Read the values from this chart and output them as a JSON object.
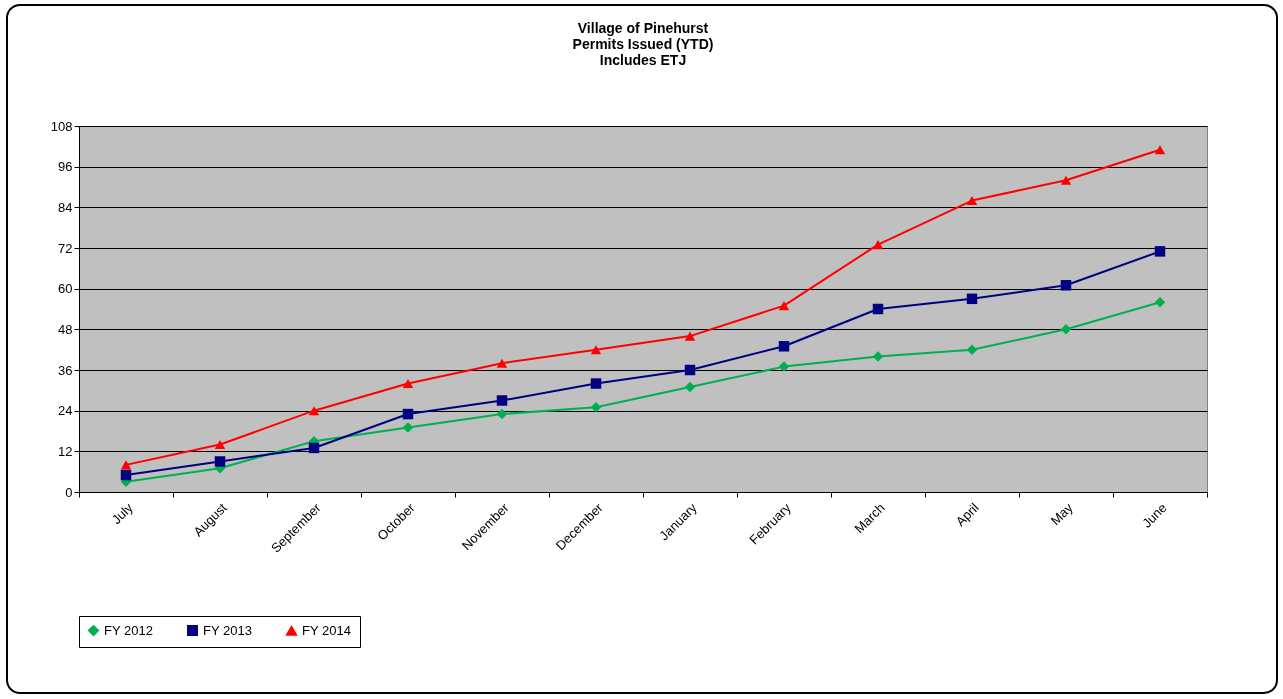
{
  "chart_data": {
    "type": "line",
    "title": "Village of Pinehurst",
    "subtitle": "Permits Issued (YTD)\nIncludes ETJ",
    "categories": [
      "July",
      "August",
      "September",
      "October",
      "November",
      "December",
      "January",
      "February",
      "March",
      "April",
      "May",
      "June"
    ],
    "series": [
      {
        "name": "FY 2012",
        "color": "#00b050",
        "marker": "diamond",
        "values": [
          3,
          7,
          15,
          19,
          23,
          25,
          31,
          37,
          40,
          42,
          48,
          56
        ]
      },
      {
        "name": "FY 2013",
        "color": "#000080",
        "marker": "square",
        "values": [
          5,
          9,
          13,
          23,
          27,
          32,
          36,
          43,
          54,
          57,
          61,
          71
        ]
      },
      {
        "name": "FY 2014",
        "color": "#ff0000",
        "marker": "triangle",
        "values": [
          8,
          14,
          24,
          32,
          38,
          42,
          46,
          55,
          73,
          86,
          92,
          101
        ]
      }
    ],
    "ylim": [
      0,
      108
    ],
    "yticks": [
      0,
      12,
      24,
      36,
      48,
      60,
      72,
      84,
      96,
      108
    ],
    "grid": "y",
    "legend": "bottom",
    "line_style": "solid"
  }
}
